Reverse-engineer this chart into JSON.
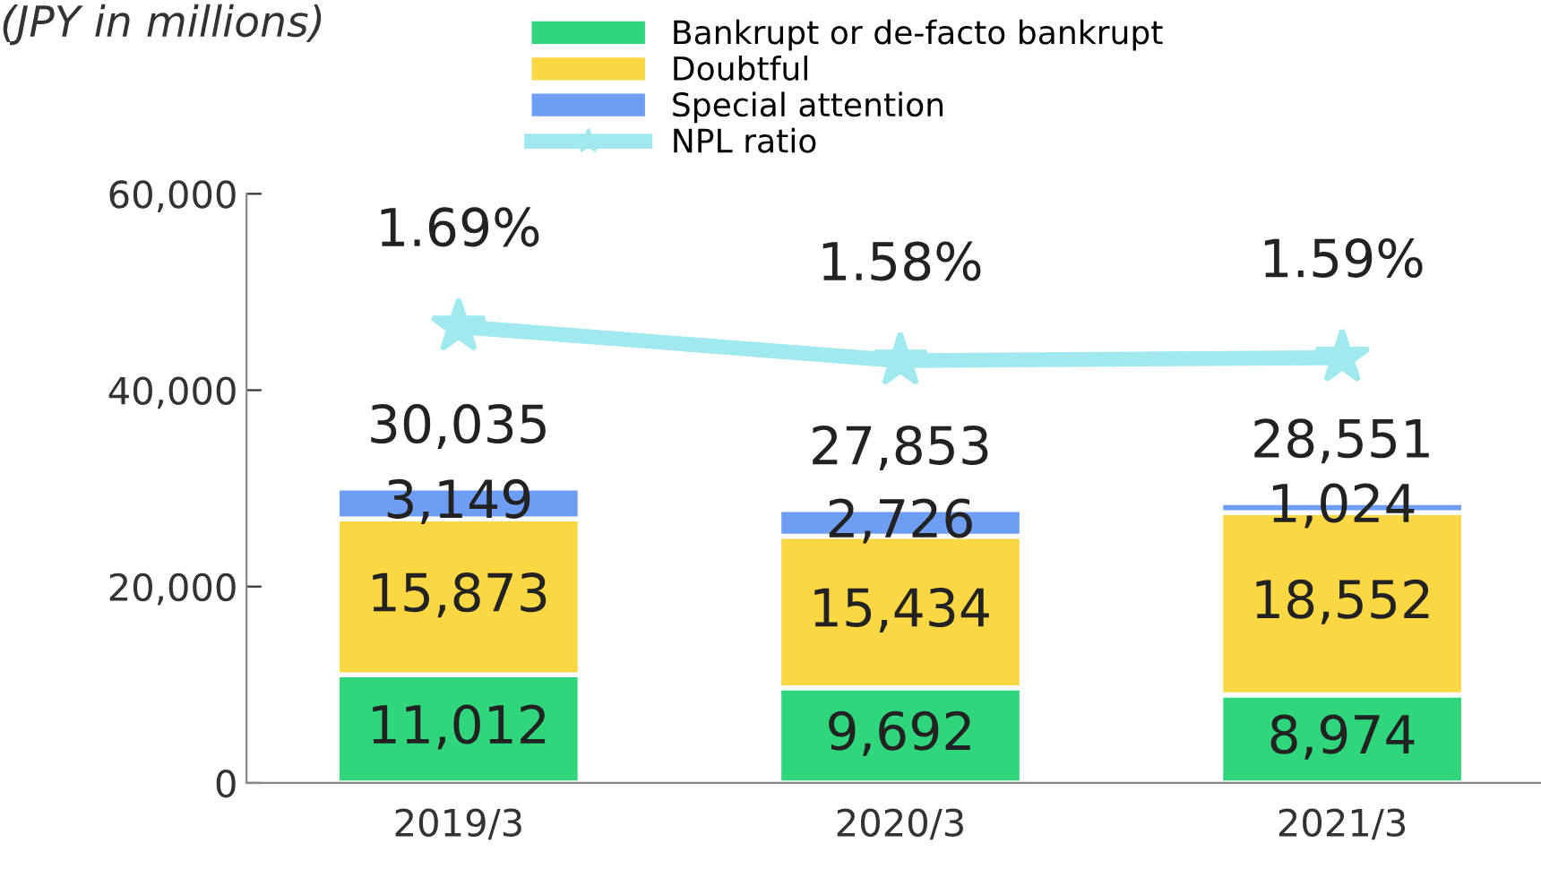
{
  "chart_data": {
    "type": "bar",
    "stacked": true,
    "ylabel": "(JPY in millions)",
    "categories": [
      "2019/3",
      "2020/3",
      "2021/3"
    ],
    "series": [
      {
        "name": "Bankrupt or de-facto bankrupt",
        "color": "#2fd67b",
        "values": [
          11012,
          9692,
          8974
        ],
        "value_labels": [
          "11,012",
          "9,692",
          "8,974"
        ]
      },
      {
        "name": "Doubtful",
        "color": "#fcd744",
        "values": [
          15873,
          15434,
          18552
        ],
        "value_labels": [
          "15,873",
          "15,434",
          "18,552"
        ]
      },
      {
        "name": "Special attention",
        "color": "#6e9ef3",
        "values": [
          3149,
          2726,
          1024
        ],
        "value_labels": [
          "3,149",
          "2,726",
          "1,024"
        ]
      },
      {
        "name": "NPL ratio",
        "type": "line",
        "axis": "y2",
        "color": "#a0e9ef",
        "marker": "star",
        "values": [
          1.69,
          1.58,
          1.59
        ],
        "value_labels": [
          "1.69%",
          "1.58%",
          "1.59%"
        ]
      }
    ],
    "totals": [
      "30,035",
      "27,853",
      "28,551"
    ],
    "ylim": [
      0,
      60000
    ],
    "yticks": [
      {
        "value": 0,
        "label": "0"
      },
      {
        "value": 20000,
        "label": "20,000"
      },
      {
        "value": 40000,
        "label": "40,000"
      },
      {
        "value": 60000,
        "label": "60,000"
      }
    ],
    "grid": false,
    "legend": "top"
  }
}
